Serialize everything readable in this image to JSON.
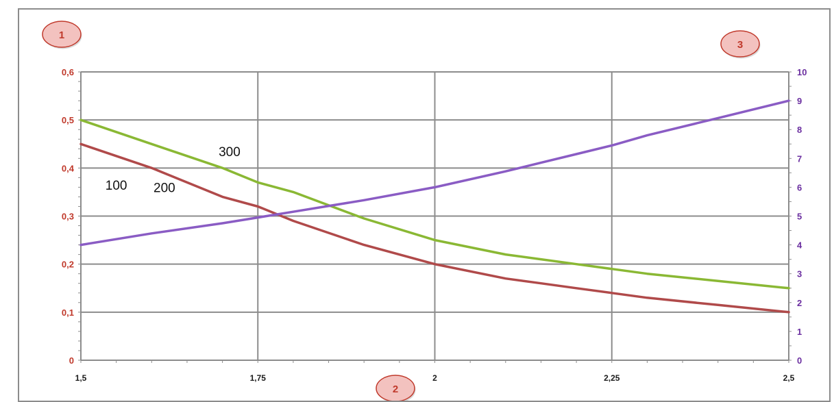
{
  "chart_data": {
    "type": "line",
    "grid": true,
    "x": [
      1.5,
      1.6,
      1.7,
      1.75,
      1.8,
      1.9,
      2.0,
      2.1,
      2.15,
      2.2,
      2.25,
      2.3,
      2.4,
      2.5
    ],
    "x_ticks": [
      "1,5",
      "1,75",
      "2",
      "2,25",
      "2,5"
    ],
    "x_tick_values": [
      1.5,
      1.75,
      2.0,
      2.25,
      2.5
    ],
    "xlim": [
      1.5,
      2.5
    ],
    "y_left_ticks": [
      "0",
      "0,1",
      "0,2",
      "0,3",
      "0,4",
      "0,5",
      "0,6"
    ],
    "y_left_tick_values": [
      0,
      0.1,
      0.2,
      0.3,
      0.4,
      0.5,
      0.6
    ],
    "ylim_left": [
      0,
      0.6
    ],
    "y_right_ticks": [
      "0",
      "1",
      "2",
      "3",
      "4",
      "5",
      "6",
      "7",
      "8",
      "9",
      "10"
    ],
    "y_right_tick_values": [
      0,
      1,
      2,
      3,
      4,
      5,
      6,
      7,
      8,
      9,
      10
    ],
    "ylim_right": [
      0,
      10
    ],
    "colors": {
      "left_axis": "#c0392b",
      "right_axis": "#6b2fa0",
      "grid": "#8c8c8c"
    },
    "series": [
      {
        "name": "",
        "axis": "left",
        "color": "#b04a4a",
        "values": [
          0.45,
          0.4,
          0.34,
          0.32,
          0.29,
          0.24,
          0.2,
          0.17,
          0.16,
          0.15,
          0.14,
          0.13,
          0.115,
          0.1
        ]
      },
      {
        "name": "",
        "axis": "left",
        "color": "#8ab834",
        "values": [
          0.5,
          0.45,
          0.4,
          0.37,
          0.35,
          0.295,
          0.25,
          0.22,
          0.21,
          0.2,
          0.19,
          0.18,
          0.165,
          0.15
        ]
      },
      {
        "name": "",
        "axis": "right",
        "color": "#8a5cc4",
        "values": [
          4.0,
          4.4,
          4.75,
          4.95,
          5.15,
          5.55,
          6.0,
          6.55,
          6.85,
          7.15,
          7.45,
          7.8,
          8.4,
          9.0
        ]
      }
    ],
    "annotations": [
      {
        "text": "100",
        "x": 1.55,
        "y": 0.355
      },
      {
        "text": "200",
        "x": 1.618,
        "y": 0.35
      },
      {
        "text": "300",
        "x": 1.71,
        "y": 0.425
      }
    ],
    "badges": [
      {
        "text": "1",
        "placement": "top-left"
      },
      {
        "text": "2",
        "placement": "bottom-center"
      },
      {
        "text": "3",
        "placement": "top-right"
      }
    ]
  }
}
